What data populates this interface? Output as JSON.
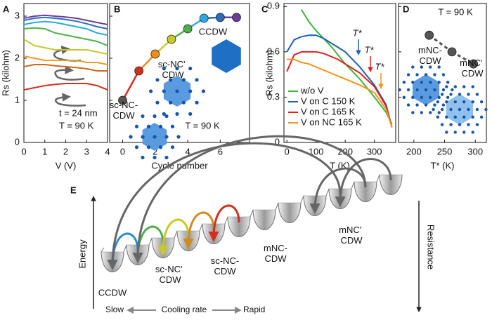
{
  "chart_data": [
    {
      "panel": "A",
      "type": "line",
      "x_label": "V (V)",
      "y_label": "Rs (kilohm)",
      "xlim": [
        0,
        4
      ],
      "ylim": [
        0,
        3.3
      ],
      "xticks": [
        0,
        1,
        2,
        3,
        4
      ],
      "yticks": [
        0,
        1,
        2,
        3
      ],
      "annotations": [
        "t = 24 nm",
        "T = 90 K"
      ],
      "x": [
        0,
        0.5,
        1,
        1.5,
        2,
        2.5,
        3,
        3.5,
        4
      ],
      "series": [
        {
          "color": "#6a3d9a",
          "values": [
            2.95,
            3.0,
            3.02,
            3.0,
            2.98,
            2.95,
            2.9,
            2.85,
            2.8
          ]
        },
        {
          "color": "#2a6ebb",
          "values": [
            2.9,
            2.95,
            2.97,
            2.95,
            2.92,
            2.88,
            2.82,
            2.75,
            2.7
          ]
        },
        {
          "color": "#29a9e0",
          "values": [
            2.8,
            2.85,
            2.87,
            2.85,
            2.8,
            2.75,
            2.7,
            2.6,
            2.55
          ]
        },
        {
          "color": "#4daf4a",
          "values": [
            2.7,
            2.72,
            2.7,
            2.6,
            2.55,
            2.5,
            2.45,
            2.4,
            2.3
          ]
        },
        {
          "color": "#c8c82a",
          "values": [
            2.45,
            2.3,
            2.25,
            2.2,
            2.2,
            2.2,
            2.2,
            2.15,
            2.1
          ]
        },
        {
          "color": "#e8a020",
          "values": [
            2.05,
            2.0,
            1.95,
            1.95,
            1.95,
            1.95,
            1.9,
            1.9,
            1.85
          ]
        },
        {
          "color": "#d0661a",
          "values": [
            1.8,
            1.85,
            1.85,
            1.82,
            1.8,
            1.78,
            1.75,
            1.7,
            1.7
          ]
        },
        {
          "color": "#d03020",
          "values": [
            1.25,
            1.3,
            1.35,
            1.38,
            1.4,
            1.4,
            1.4,
            1.35,
            1.25
          ]
        }
      ]
    },
    {
      "panel": "B",
      "type": "scatter",
      "x_label": "Cycle number",
      "xlim": [
        -0.8,
        7.8
      ],
      "ylim": [
        0,
        3.3
      ],
      "xticks": [
        0,
        2,
        4,
        6
      ],
      "yticks": [
        0,
        1,
        2,
        3
      ],
      "annotations": [
        "sc-NC-CDW",
        "sc-NC' CDW",
        "CCDW",
        "T = 90 K"
      ],
      "x": [
        0,
        1,
        2,
        3,
        4,
        5,
        6,
        7
      ],
      "values": [
        1.0,
        1.7,
        2.1,
        2.45,
        2.7,
        2.95,
        2.97,
        2.97
      ],
      "colors": [
        "#555555",
        "#d03020",
        "#e8901a",
        "#c8c82a",
        "#4daf4a",
        "#29a9e0",
        "#2a6ebb",
        "#6a3d9a"
      ]
    },
    {
      "panel": "C",
      "type": "line",
      "x_label": "T (K)",
      "y_label": "Rs (kilohm)",
      "xlim": [
        -10,
        373
      ],
      "ylim": [
        0,
        0.92
      ],
      "xticks": [
        0,
        100,
        200,
        300
      ],
      "yticks": [
        0,
        0.3,
        0.6,
        0.9
      ],
      "legend": "lower left",
      "annotations": [
        {
          "text": "T*",
          "color": "#1f5fb4"
        },
        {
          "text": "T*",
          "color": "#e02020"
        },
        {
          "text": "T*",
          "color": "#f0961e"
        }
      ],
      "x": [
        0,
        25,
        50,
        75,
        100,
        125,
        150,
        175,
        200,
        250,
        300,
        340,
        360
      ],
      "series": [
        {
          "name": "w/o V",
          "color": "#3cb43c",
          "values": [
            null,
            null,
            0.88,
            0.8,
            0.74,
            0.69,
            0.64,
            0.58,
            0.52,
            0.42,
            0.3,
            0.2,
            0.12
          ]
        },
        {
          "name": "V on C 150 K",
          "color": "#1f5fb4",
          "values": [
            0.6,
            0.68,
            0.7,
            0.71,
            0.71,
            0.69,
            0.66,
            0.63,
            0.6,
            0.5,
            0.38,
            0.25,
            0.1
          ]
        },
        {
          "name": "V on C 165 K",
          "color": "#e02020",
          "values": [
            0.47,
            0.58,
            0.6,
            0.6,
            0.6,
            0.59,
            0.57,
            0.55,
            0.52,
            0.46,
            0.37,
            0.24,
            0.1
          ]
        },
        {
          "name": "V on NC 165 K",
          "color": "#f0961e",
          "values": [
            0.55,
            0.55,
            0.53,
            0.52,
            0.5,
            0.48,
            0.46,
            0.44,
            0.42,
            0.38,
            0.33,
            0.22,
            0.1
          ]
        }
      ]
    },
    {
      "panel": "D",
      "type": "scatter",
      "x_label": "T* (K)",
      "xlim": [
        175,
        318
      ],
      "ylim": [
        0,
        0.92
      ],
      "xticks": [
        200,
        250,
        300
      ],
      "yticks": [
        0,
        0.3,
        0.6,
        0.9
      ],
      "annotations": [
        "T = 90 K",
        "mNC-CDW",
        "mNC' CDW"
      ],
      "x": [
        225,
        262,
        297
      ],
      "values": [
        0.71,
        0.6,
        0.52
      ],
      "colors": [
        "#555555",
        "#555555",
        "#555555"
      ],
      "dashed": true
    }
  ],
  "diagram": {
    "panel": "E",
    "labels": [
      "CCDW",
      "sc-NC' CDW",
      "sc-NC-CDW",
      "mNC-CDW",
      "mNC' CDW"
    ],
    "left_axis": "Energy",
    "right_axis": "Resistance",
    "bottom": [
      "Slow",
      "Cooling rate",
      "Rapid"
    ]
  }
}
